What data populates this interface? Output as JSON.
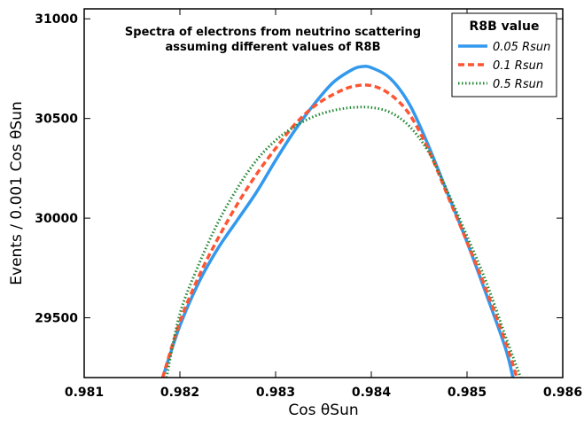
{
  "chart_data": {
    "type": "line",
    "title_lines": [
      "Spectra of electrons from neutrino scattering",
      "assuming different values of R8B"
    ],
    "xlabel": "Cos θSun",
    "ylabel": "Events / 0.001 Cos θSun",
    "xlim": [
      0.981,
      0.986
    ],
    "ylim": [
      29200,
      31050
    ],
    "xticks": [
      "0.981",
      "0.982",
      "0.983",
      "0.984",
      "0.985",
      "0.986"
    ],
    "yticks": [
      "29500",
      "30000",
      "30500",
      "31000"
    ],
    "grid": false,
    "legend": {
      "title": "R8B value",
      "position": "top-right",
      "entries": [
        "0.05 Rsun",
        "0.1 Rsun",
        "0.5 Rsun"
      ]
    },
    "series": [
      {
        "name": "0.05 Rsun",
        "color": "#3399ee",
        "style": "solid",
        "points": [
          [
            0.98182,
            29200
          ],
          [
            0.982,
            29460
          ],
          [
            0.9822,
            29680
          ],
          [
            0.9824,
            29850
          ],
          [
            0.9826,
            29990
          ],
          [
            0.9828,
            30130
          ],
          [
            0.983,
            30290
          ],
          [
            0.9832,
            30440
          ],
          [
            0.9834,
            30570
          ],
          [
            0.9836,
            30680
          ],
          [
            0.9838,
            30745
          ],
          [
            0.9839,
            30760
          ],
          [
            0.984,
            30755
          ],
          [
            0.9842,
            30700
          ],
          [
            0.9844,
            30570
          ],
          [
            0.9846,
            30360
          ],
          [
            0.9848,
            30120
          ],
          [
            0.985,
            29880
          ],
          [
            0.9852,
            29620
          ],
          [
            0.9854,
            29350
          ],
          [
            0.98548,
            29200
          ]
        ]
      },
      {
        "name": "0.1 Rsun",
        "color": "#ff5533",
        "style": "dashed",
        "points": [
          [
            0.98182,
            29200
          ],
          [
            0.982,
            29480
          ],
          [
            0.9822,
            29710
          ],
          [
            0.9824,
            29900
          ],
          [
            0.9826,
            30070
          ],
          [
            0.9828,
            30220
          ],
          [
            0.983,
            30350
          ],
          [
            0.9832,
            30470
          ],
          [
            0.9834,
            30560
          ],
          [
            0.9836,
            30620
          ],
          [
            0.9838,
            30660
          ],
          [
            0.984,
            30665
          ],
          [
            0.9842,
            30620
          ],
          [
            0.9844,
            30520
          ],
          [
            0.9846,
            30340
          ],
          [
            0.9848,
            30110
          ],
          [
            0.985,
            29880
          ],
          [
            0.9852,
            29640
          ],
          [
            0.9854,
            29380
          ],
          [
            0.98552,
            29200
          ]
        ]
      },
      {
        "name": "0.5 Rsun",
        "color": "#228833",
        "style": "dotted",
        "points": [
          [
            0.98186,
            29200
          ],
          [
            0.982,
            29520
          ],
          [
            0.9822,
            29770
          ],
          [
            0.9824,
            29980
          ],
          [
            0.9826,
            30150
          ],
          [
            0.9828,
            30290
          ],
          [
            0.983,
            30390
          ],
          [
            0.9832,
            30460
          ],
          [
            0.9834,
            30510
          ],
          [
            0.9836,
            30540
          ],
          [
            0.9838,
            30555
          ],
          [
            0.984,
            30555
          ],
          [
            0.9842,
            30530
          ],
          [
            0.9844,
            30460
          ],
          [
            0.9846,
            30330
          ],
          [
            0.9848,
            30130
          ],
          [
            0.985,
            29910
          ],
          [
            0.9852,
            29680
          ],
          [
            0.9854,
            29410
          ],
          [
            0.98556,
            29200
          ]
        ]
      }
    ]
  }
}
